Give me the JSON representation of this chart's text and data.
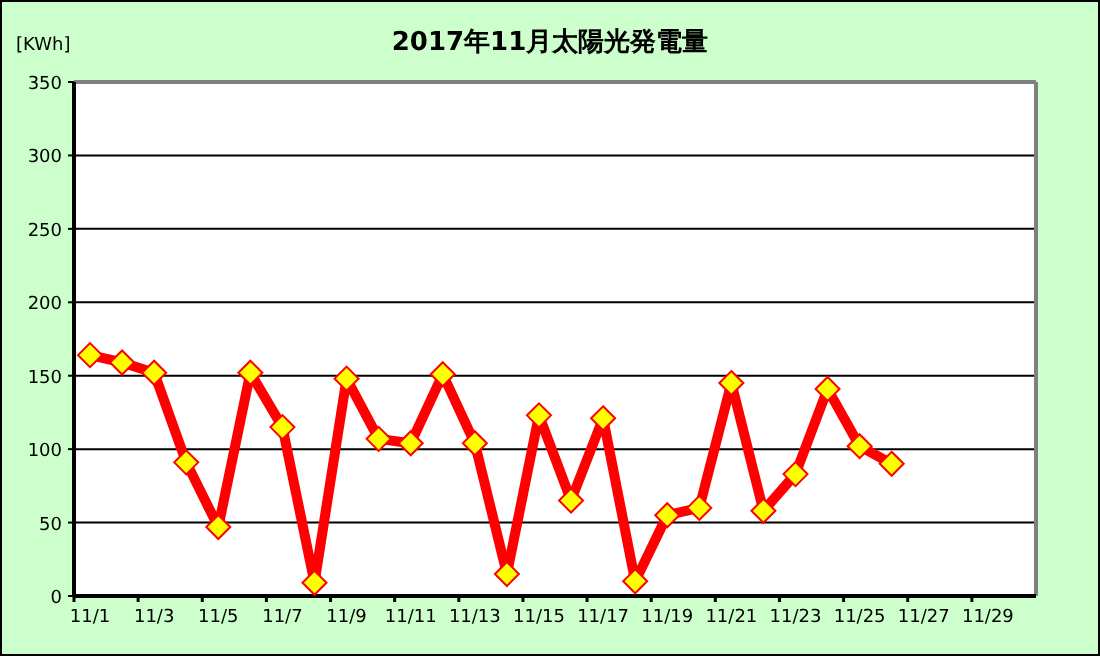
{
  "chart_data": {
    "type": "line",
    "title": "2017年11月太陽光発電量",
    "ylabel": "[KWh]",
    "categories": [
      "11/1",
      null,
      "11/3",
      null,
      "11/5",
      null,
      "11/7",
      null,
      "11/9",
      null,
      "11/11",
      null,
      "11/13",
      null,
      "11/15",
      null,
      "11/17",
      null,
      "11/19",
      null,
      "11/21",
      null,
      "11/23",
      null,
      "11/25",
      null,
      "11/27",
      null,
      "11/29",
      null
    ],
    "series": [
      {
        "color": "#ff0000",
        "values": [
          164,
          159,
          152,
          91,
          47,
          152,
          115,
          9,
          148,
          107,
          104,
          151,
          104,
          15,
          123,
          65,
          121,
          10,
          55,
          60,
          145,
          58,
          83,
          141,
          102,
          90,
          null,
          null,
          null,
          null
        ]
      }
    ],
    "ylim": [
      0,
      350
    ],
    "yticks": [
      0,
      50,
      100,
      150,
      200,
      250,
      300,
      350
    ],
    "grid": "y",
    "marker": "diamond"
  }
}
